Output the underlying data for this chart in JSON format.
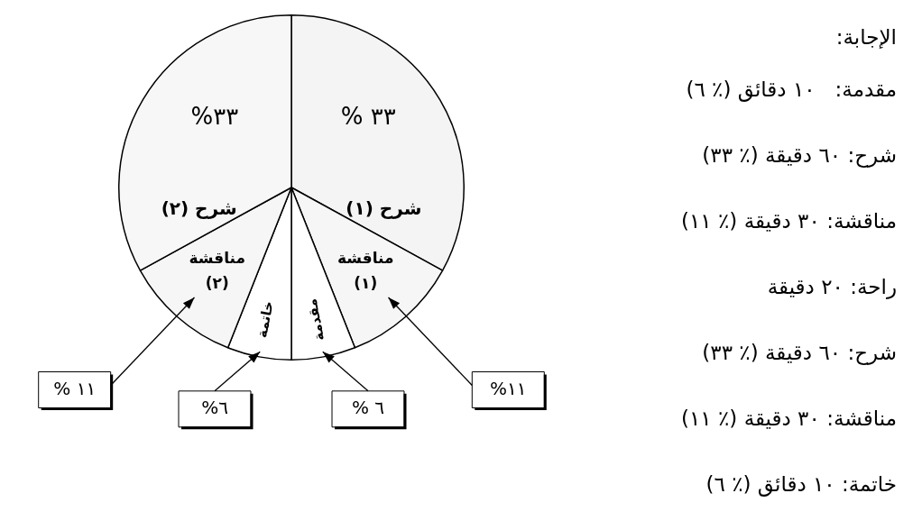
{
  "chart_data": {
    "type": "pie",
    "categories": [
      "شرح (١)",
      "مناقشة (١)",
      "مقدمة",
      "خاتمة",
      "مناقشة (٢)",
      "شرح (٢)"
    ],
    "values": [
      33,
      11,
      6,
      6,
      11,
      33
    ],
    "colors": [
      "#f4f4f4",
      "#f6f6f6",
      "#ffffff",
      "#ffffff",
      "#f6f6f6",
      "#f7f7f7"
    ],
    "value_labels": [
      "% ٣٣",
      "%١١",
      "% ٦",
      "%٦",
      "% ١١",
      "%٣٣"
    ],
    "annotations": [
      "الإجابة:",
      "مقدمة:   ١٠ دقائق (٪ ٦)",
      "شرح: ٦٠ دقيقة (٪ ٣٣)",
      "مناقشة: ٣٠ دقيقة (٪ ١١)",
      "راحة: ٢٠ دقيقة",
      "شرح: ٦٠ دقيقة (٪ ٣٣)",
      "مناقشة: ٣٠ دقيقة (٪ ١١)",
      "خاتمة: ١٠ دقائق (٪ ٦)"
    ],
    "legend": false
  }
}
